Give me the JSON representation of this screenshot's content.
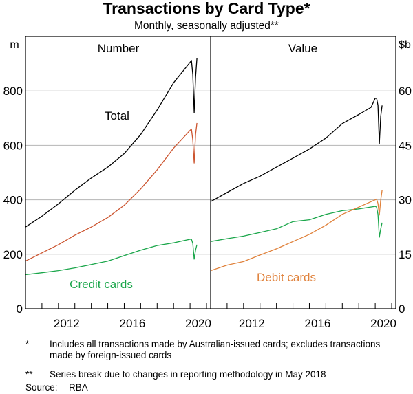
{
  "chart_data": {
    "type": "line",
    "title": "Transactions by Card Type*",
    "subtitle": "Monthly, seasonally adjusted**",
    "xlim": [
      "2010-01",
      "2021-04"
    ],
    "x_tick_labels": [
      "2012",
      "2016",
      "2020"
    ],
    "grid": true,
    "panels": [
      {
        "title": "Number",
        "unit": "m",
        "ylim": [
          0,
          1000
        ],
        "y_ticks": [
          0,
          200,
          400,
          600,
          800
        ],
        "axis_side": "left",
        "annotations": [
          {
            "text": "Total",
            "color": "#000000"
          },
          {
            "text": "Credit cards",
            "color": "#1aa64a"
          }
        ],
        "series": [
          {
            "name": "Total",
            "color": "#000000",
            "x": [
              "2010-01",
              "2011-01",
              "2012-01",
              "2013-01",
              "2014-01",
              "2015-01",
              "2016-01",
              "2017-01",
              "2018-01",
              "2019-01",
              "2020-01",
              "2020-02",
              "2020-03",
              "2020-04",
              "2020-05",
              "2020-06"
            ],
            "y": [
              300,
              340,
              385,
              435,
              480,
              520,
              570,
              640,
              730,
              830,
              905,
              912,
              860,
              720,
              850,
              920
            ]
          },
          {
            "name": "Debit cards",
            "color": "#cc5530",
            "x": [
              "2010-01",
              "2011-01",
              "2012-01",
              "2013-01",
              "2014-01",
              "2015-01",
              "2016-01",
              "2017-01",
              "2018-01",
              "2019-01",
              "2020-01",
              "2020-02",
              "2020-03",
              "2020-04",
              "2020-05",
              "2020-06"
            ],
            "y": [
              175,
              205,
              235,
              270,
              300,
              335,
              380,
              440,
              510,
              590,
              655,
              660,
              620,
              535,
              640,
              682
            ]
          },
          {
            "name": "Credit cards",
            "color": "#1aa64a",
            "x": [
              "2010-01",
              "2011-01",
              "2012-01",
              "2013-01",
              "2014-01",
              "2015-01",
              "2016-01",
              "2017-01",
              "2018-01",
              "2019-01",
              "2020-01",
              "2020-02",
              "2020-03",
              "2020-04",
              "2020-05",
              "2020-06"
            ],
            "y": [
              125,
              132,
              140,
              150,
              162,
              175,
              195,
              215,
              232,
              242,
              255,
              255,
              240,
              182,
              215,
              235
            ]
          }
        ]
      },
      {
        "title": "Value",
        "unit": "$b",
        "ylim": [
          0,
          75
        ],
        "y_ticks": [
          0,
          15,
          30,
          45,
          60
        ],
        "axis_side": "right",
        "annotations": [
          {
            "text": "Debit cards",
            "color": "#e0823c"
          }
        ],
        "series": [
          {
            "name": "Total",
            "color": "#000000",
            "x": [
              "2010-01",
              "2011-01",
              "2012-01",
              "2013-01",
              "2014-01",
              "2015-01",
              "2016-01",
              "2017-01",
              "2018-01",
              "2019-01",
              "2019-10",
              "2020-01",
              "2020-02",
              "2020-03",
              "2020-04",
              "2020-05",
              "2020-06"
            ],
            "y": [
              29.5,
              32,
              34.5,
              36.5,
              39,
              41.5,
              44,
              47,
              51,
              53.5,
              55.5,
              58,
              58,
              56,
              45.5,
              53,
              56
            ]
          },
          {
            "name": "Credit cards",
            "color": "#1aa64a",
            "x": [
              "2010-01",
              "2011-01",
              "2012-01",
              "2013-01",
              "2014-01",
              "2015-01",
              "2016-01",
              "2017-01",
              "2018-01",
              "2019-01",
              "2020-01",
              "2020-02",
              "2020-03",
              "2020-04",
              "2020-05",
              "2020-06"
            ],
            "y": [
              18.5,
              19.3,
              20,
              21,
              22,
              24,
              24.5,
              26,
              27,
              27.5,
              28.2,
              28,
              26,
              19.7,
              22,
              23.7
            ]
          },
          {
            "name": "Debit cards",
            "color": "#e0823c",
            "x": [
              "2010-01",
              "2011-01",
              "2012-01",
              "2013-01",
              "2014-01",
              "2015-01",
              "2016-01",
              "2017-01",
              "2018-01",
              "2019-01",
              "2020-01",
              "2020-02",
              "2020-03",
              "2020-04",
              "2020-05",
              "2020-06"
            ],
            "y": [
              10.5,
              12,
              13,
              14.8,
              16.5,
              18.5,
              20.5,
              23,
              26,
              28,
              30,
              30.2,
              29,
              25.8,
              30,
              32.6
            ]
          }
        ]
      }
    ]
  },
  "footnotes": [
    {
      "mark": "*",
      "text": "Includes all transactions made by Australian-issued cards; excludes transactions made by foreign-issued cards"
    },
    {
      "mark": "**",
      "text": "Series break due to changes in reporting methodology in May 2018"
    }
  ],
  "source": {
    "label": "Source:",
    "text": "RBA"
  }
}
